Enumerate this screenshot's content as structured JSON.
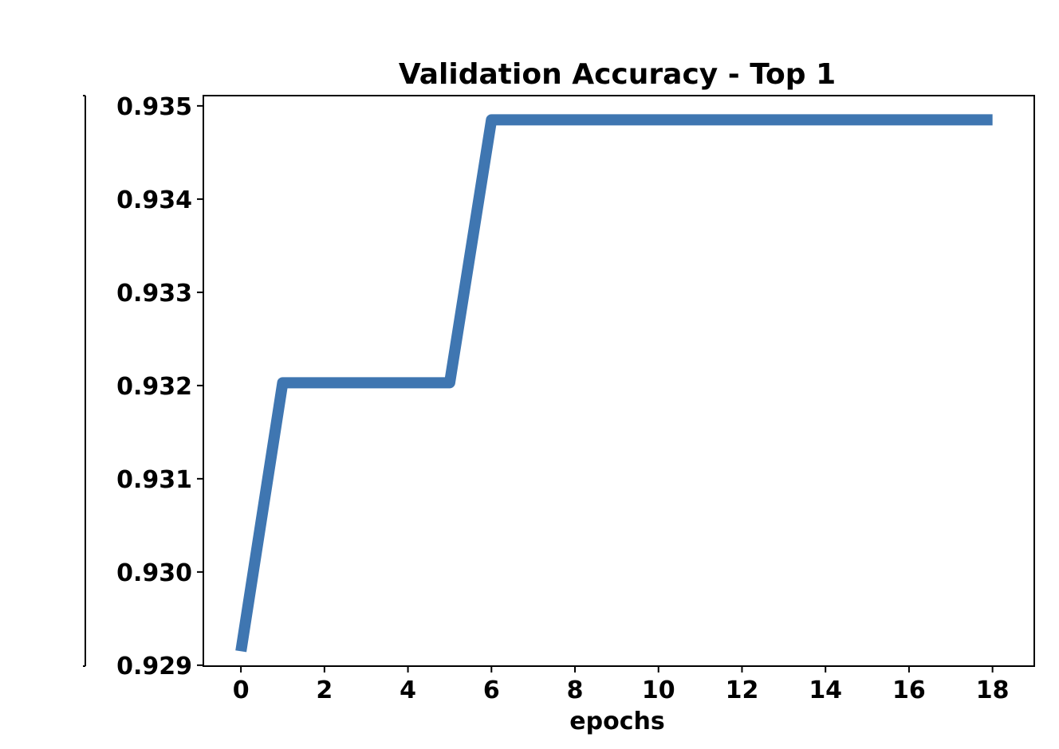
{
  "chart_data": {
    "type": "line",
    "title": "Validation Accuracy - Top 1",
    "xlabel": "epochs",
    "ylabel": "",
    "xlim": [
      -0.9,
      19
    ],
    "ylim": [
      0.92899,
      0.93511
    ],
    "x_ticks": [
      0,
      2,
      4,
      6,
      8,
      10,
      12,
      14,
      16,
      18
    ],
    "y_ticks": [
      0.929,
      0.93,
      0.931,
      0.932,
      0.933,
      0.934,
      0.935
    ],
    "y_tick_labels": [
      "0.929",
      "0.930",
      "0.931",
      "0.932",
      "0.933",
      "0.934",
      "0.935"
    ],
    "x_tick_labels": [
      "0",
      "2",
      "4",
      "6",
      "8",
      "10",
      "12",
      "14",
      "16",
      "18"
    ],
    "grid": false,
    "legend": "none",
    "series": [
      {
        "color": "#3f76b1",
        "x": [
          0,
          1,
          2,
          3,
          4,
          5,
          6,
          7,
          8,
          9,
          10,
          11,
          12,
          13,
          14,
          15,
          16,
          17,
          18
        ],
        "values": [
          0.92915,
          0.93203,
          0.93203,
          0.93203,
          0.93203,
          0.93203,
          0.93485,
          0.93485,
          0.93485,
          0.93485,
          0.93485,
          0.93485,
          0.93485,
          0.93485,
          0.93485,
          0.93485,
          0.93485,
          0.93485,
          0.93485
        ]
      }
    ]
  }
}
